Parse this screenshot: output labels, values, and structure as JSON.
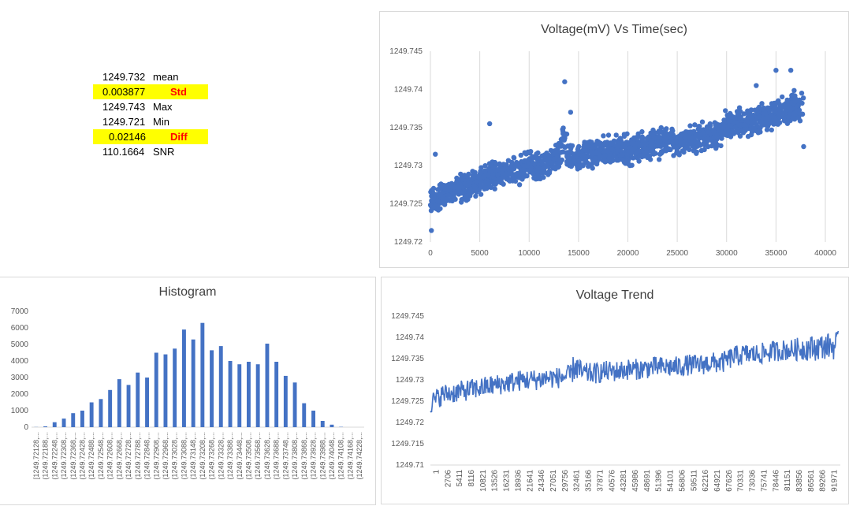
{
  "stats": {
    "rows": [
      {
        "value": "1249.732",
        "name": "mean",
        "highlight": false
      },
      {
        "value": "0.003877",
        "name": "Std",
        "highlight": true
      },
      {
        "value": "1249.743",
        "name": "Max",
        "highlight": false
      },
      {
        "value": "1249.721",
        "name": "Min",
        "highlight": false
      },
      {
        "value": "0.02146",
        "name": "Diff",
        "highlight": true
      },
      {
        "value": "110.1664",
        "name": "SNR",
        "highlight": false
      }
    ]
  },
  "colors": {
    "series": "#4472c4",
    "highlight": "#ffff00",
    "label_red": "#ff0000",
    "grid": "#d9d9d9",
    "text": "#595959"
  },
  "chart_data": [
    {
      "type": "scatter",
      "title": "Voltage(mV) Vs Time(sec)",
      "xlabel": "",
      "ylabel": "",
      "xlim": [
        0,
        40000
      ],
      "ylim": [
        1249.72,
        1249.745
      ],
      "xticks": [
        "0",
        "5000",
        "10000",
        "15000",
        "20000",
        "25000",
        "30000",
        "35000",
        "40000"
      ],
      "yticks": [
        "1249.72",
        "1249.725",
        "1249.73",
        "1249.735",
        "1249.74",
        "1249.745"
      ],
      "grid": "vertical",
      "x": [
        0,
        1000,
        2000,
        3000,
        4000,
        5000,
        6000,
        7000,
        8000,
        9000,
        10000,
        11000,
        12000,
        13000,
        13500,
        14000,
        15000,
        16000,
        17000,
        18000,
        19000,
        20000,
        21000,
        22000,
        23000,
        24000,
        25000,
        26000,
        27000,
        28000,
        29000,
        30000,
        31000,
        32000,
        33000,
        34000,
        35000,
        36000,
        37000,
        37800
      ],
      "y": [
        1249.7255,
        1249.726,
        1249.7265,
        1249.727,
        1249.7275,
        1249.728,
        1249.7285,
        1249.729,
        1249.729,
        1249.7295,
        1249.73,
        1249.73,
        1249.7305,
        1249.731,
        1249.7335,
        1249.731,
        1249.731,
        1249.7315,
        1249.7315,
        1249.732,
        1249.732,
        1249.732,
        1249.7325,
        1249.7325,
        1249.733,
        1249.733,
        1249.733,
        1249.7335,
        1249.7335,
        1249.734,
        1249.734,
        1249.7355,
        1249.7355,
        1249.736,
        1249.736,
        1249.7365,
        1249.737,
        1249.737,
        1249.7375,
        1249.738
      ],
      "band": [
        0.0025,
        0.0025,
        0.0025,
        0.0025,
        0.0025,
        0.0025,
        0.0025,
        0.0025,
        0.0025,
        0.0025,
        0.0025,
        0.0025,
        0.0025,
        0.0025,
        0.004,
        0.0025,
        0.0025,
        0.0025,
        0.0025,
        0.0025,
        0.0025,
        0.0025,
        0.0025,
        0.0025,
        0.0025,
        0.0025,
        0.0025,
        0.0025,
        0.0025,
        0.0025,
        0.0025,
        0.0025,
        0.0025,
        0.0025,
        0.0025,
        0.0025,
        0.003,
        0.003,
        0.003,
        0.0035
      ],
      "outliers": [
        [
          100,
          1249.7215
        ],
        [
          500,
          1249.7315
        ],
        [
          6000,
          1249.7355
        ],
        [
          13600,
          1249.741
        ],
        [
          14200,
          1249.737
        ],
        [
          33000,
          1249.7405
        ],
        [
          35000,
          1249.7425
        ],
        [
          36500,
          1249.7425
        ],
        [
          37800,
          1249.7325
        ]
      ]
    },
    {
      "type": "bar",
      "title": "Histogram",
      "ylim": [
        0,
        7000
      ],
      "yticks": [
        "0",
        "1000",
        "2000",
        "3000",
        "4000",
        "5000",
        "6000",
        "7000"
      ],
      "categories": [
        "[1249.72128,...",
        "(1249.72188,...",
        "(1249.72248,...",
        "(1249.72308,...",
        "(1249.72368,...",
        "(1249.72428,...",
        "(1249.72488,...",
        "(1249.72548,...",
        "(1249.72608,...",
        "(1249.72668,...",
        "(1249.72728,...",
        "(1249.72788,...",
        "(1249.72848,...",
        "(1249.72908,...",
        "(1249.72968,...",
        "(1249.73028,...",
        "(1249.73088,...",
        "(1249.73148,...",
        "(1249.73208,...",
        "(1249.73268,...",
        "(1249.73328,...",
        "(1249.73388,...",
        "(1249.73448,...",
        "(1249.73508,...",
        "(1249.73568,...",
        "(1249.73628,...",
        "(1249.73688,...",
        "(1249.73748,...",
        "(1249.73808,...",
        "(1249.73868,...",
        "(1249.73928,...",
        "(1249.73988,...",
        "(1249.74048,...",
        "(1249.74108,...",
        "(1249.74168,...",
        "(1249.74228,..."
      ],
      "values": [
        10,
        50,
        300,
        520,
        850,
        1000,
        1500,
        1700,
        2250,
        2900,
        2550,
        3300,
        3000,
        4500,
        4400,
        4750,
        5900,
        5300,
        6300,
        4650,
        4900,
        4000,
        3800,
        3950,
        3800,
        5050,
        3950,
        3100,
        2700,
        1450,
        1000,
        380,
        150,
        20,
        0,
        0
      ]
    },
    {
      "type": "line",
      "title": "Voltage Trend",
      "ylim": [
        1249.71,
        1249.745
      ],
      "yticks": [
        "1249.71",
        "1249.715",
        "1249.72",
        "1249.725",
        "1249.73",
        "1249.735",
        "1249.74",
        "1249.745"
      ],
      "xticks": [
        "1",
        "2706",
        "5411",
        "8116",
        "10821",
        "13526",
        "16231",
        "18936",
        "21641",
        "24346",
        "27051",
        "29756",
        "32461",
        "35166",
        "37871",
        "40576",
        "43281",
        "45986",
        "48691",
        "51396",
        "54101",
        "56806",
        "59511",
        "62216",
        "64921",
        "67626",
        "70331",
        "73036",
        "75741",
        "78446",
        "81151",
        "83856",
        "86561",
        "89266",
        "91971"
      ],
      "xlim": [
        1,
        95000
      ],
      "x": [
        1,
        2706,
        5411,
        8116,
        10821,
        13526,
        16231,
        18936,
        21641,
        24346,
        27051,
        29756,
        32461,
        33500,
        35166,
        37871,
        40576,
        43281,
        45986,
        48691,
        51396,
        54101,
        56806,
        59511,
        62216,
        64921,
        67626,
        70331,
        73036,
        75741,
        78446,
        81151,
        83856,
        86561,
        89266,
        91971,
        94500
      ],
      "y": [
        1249.7245,
        1249.7265,
        1249.727,
        1249.7275,
        1249.728,
        1249.7285,
        1249.729,
        1249.7295,
        1249.73,
        1249.73,
        1249.7305,
        1249.7305,
        1249.731,
        1249.7335,
        1249.7315,
        1249.7315,
        1249.732,
        1249.732,
        1249.7325,
        1249.7325,
        1249.733,
        1249.733,
        1249.733,
        1249.7335,
        1249.7335,
        1249.734,
        1249.734,
        1249.7355,
        1249.736,
        1249.736,
        1249.7365,
        1249.737,
        1249.737,
        1249.7375,
        1249.7375,
        1249.738,
        1249.738
      ],
      "band": [
        0.0025,
        0.0025,
        0.0025,
        0.0025,
        0.0025,
        0.0025,
        0.0025,
        0.0025,
        0.0025,
        0.0025,
        0.0025,
        0.0025,
        0.0025,
        0.0035,
        0.0025,
        0.0025,
        0.0025,
        0.0025,
        0.0025,
        0.0025,
        0.0025,
        0.0025,
        0.0025,
        0.0025,
        0.0025,
        0.0025,
        0.0025,
        0.0025,
        0.0025,
        0.0025,
        0.0025,
        0.0025,
        0.0025,
        0.003,
        0.003,
        0.003,
        0.0035
      ]
    }
  ]
}
